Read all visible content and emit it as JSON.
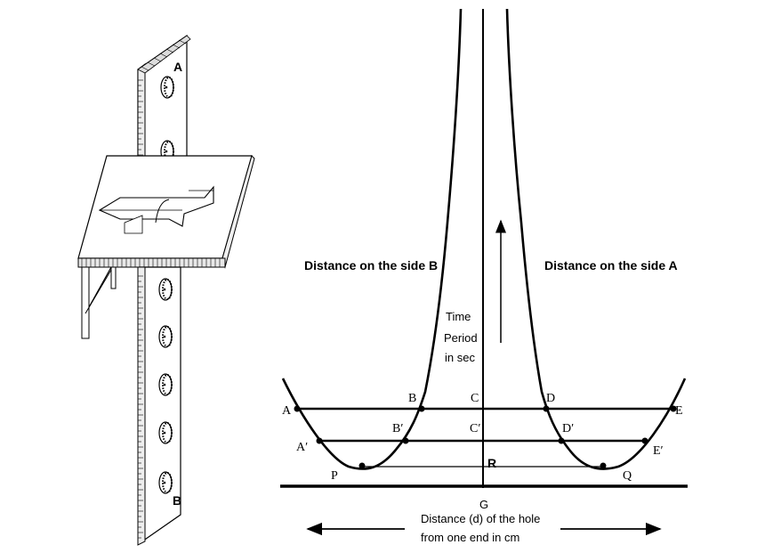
{
  "pendulum": {
    "hole_label_top": "A",
    "hole_label_bottom": "B"
  },
  "graph": {
    "side_b_label": "Distance on the side B",
    "side_a_label": "Distance on the side A",
    "y_axis_label": [
      "Time",
      "Period",
      "in sec"
    ],
    "x_axis_label": [
      "Distance (d) of the hole",
      "from one end in cm"
    ],
    "points": {
      "A": "A",
      "B": "B",
      "C": "C",
      "D": "D",
      "E": "E",
      "A_prime": "A′",
      "B_prime": "B′",
      "C_prime": "C′",
      "D_prime": "D′",
      "E_prime": "E′",
      "P": "P",
      "Q": "Q",
      "R": "R",
      "G": "G"
    }
  }
}
